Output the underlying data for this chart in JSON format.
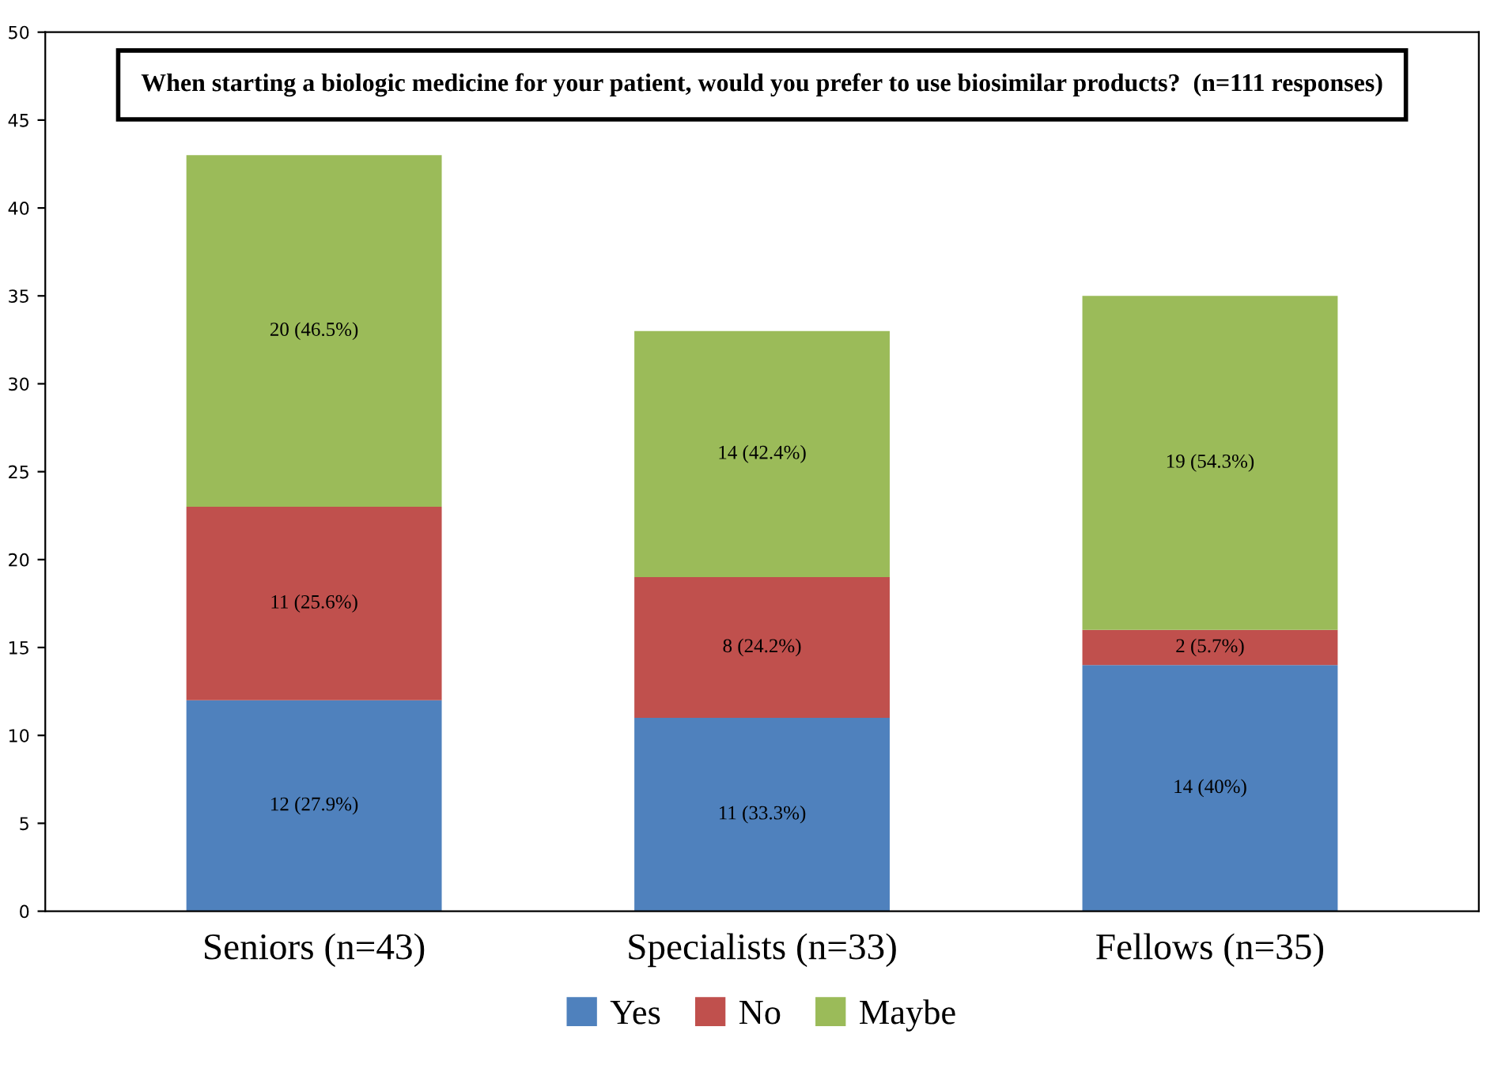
{
  "chart_data": {
    "type": "bar",
    "stacked": true,
    "title": "When starting a biologic medicine for your patient, would you prefer to use biosimilar products?  (n=111 responses)",
    "categories": [
      "Seniors (n=43)",
      "Specialists (n=33)",
      "Fellows (n=35)"
    ],
    "series": [
      {
        "name": "Yes",
        "color": "#4f81bd",
        "values": [
          12,
          11,
          14
        ],
        "value_labels": [
          "12 (27.9%)",
          "11 (33.3%)",
          "14 (40%)"
        ]
      },
      {
        "name": "No",
        "color": "#c0504d",
        "values": [
          11,
          8,
          2
        ],
        "value_labels": [
          "11 (25.6%)",
          "8 (24.2%)",
          "2 (5.7%)"
        ]
      },
      {
        "name": "Maybe",
        "color": "#9bbb59",
        "values": [
          20,
          14,
          19
        ],
        "value_labels": [
          "20 (46.5%)",
          "14 (42.4%)",
          "19 (54.3%)"
        ]
      }
    ],
    "ylim": [
      0,
      50
    ],
    "yticks": [
      0,
      5,
      10,
      15,
      20,
      25,
      30,
      35,
      40,
      45,
      50
    ],
    "grid": false,
    "legend": "bottom"
  }
}
